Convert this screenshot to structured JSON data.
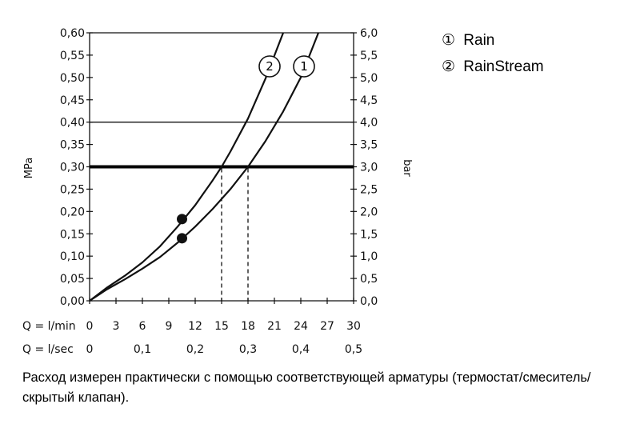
{
  "chart_data": {
    "type": "line",
    "left_axis": {
      "label": "MPa",
      "ticks": [
        "0,00",
        "0,05",
        "0,10",
        "0,15",
        "0,20",
        "0,25",
        "0,30",
        "0,35",
        "0,40",
        "0,45",
        "0,50",
        "0,55",
        "0,60"
      ],
      "range": [
        0,
        0.6
      ]
    },
    "right_axis": {
      "label": "bar",
      "ticks": [
        "0,0",
        "0,5",
        "1,0",
        "1,5",
        "2,0",
        "2,5",
        "3,0",
        "3,5",
        "4,0",
        "4,5",
        "5,0",
        "5,5",
        "6,0"
      ],
      "range": [
        0,
        6
      ]
    },
    "x_axis": {
      "range": [
        0,
        30
      ],
      "row1_label": "Q = l/min",
      "row1_ticks": [
        "0",
        "3",
        "6",
        "9",
        "12",
        "15",
        "18",
        "21",
        "24",
        "27",
        "30"
      ],
      "row2_label": "Q = l/sec",
      "row2_ticks": [
        "0",
        "0,1",
        "0,2",
        "0,3",
        "0,4",
        "0,5"
      ]
    },
    "grid": "horizontal lines at 0,40 and 0,60 MPa",
    "reference_line_y": 0.3,
    "series": [
      {
        "name": "Rain",
        "marker": "1",
        "x": [
          0,
          2,
          4,
          6,
          8,
          10,
          12,
          14,
          16,
          18,
          20,
          22,
          24,
          26
        ],
        "y": [
          0,
          0.026,
          0.048,
          0.072,
          0.098,
          0.13,
          0.166,
          0.206,
          0.25,
          0.3,
          0.358,
          0.424,
          0.5,
          0.6
        ],
        "drop_line_x": 18,
        "highlight_point": [
          10.5,
          0.14
        ]
      },
      {
        "name": "RainStream",
        "marker": "2",
        "x": [
          0,
          2,
          4,
          6,
          8,
          10,
          12,
          14,
          15,
          16,
          18,
          20,
          22
        ],
        "y": [
          0,
          0.03,
          0.056,
          0.086,
          0.122,
          0.166,
          0.214,
          0.27,
          0.3,
          0.334,
          0.408,
          0.498,
          0.6
        ],
        "drop_line_x": 15,
        "highlight_point": [
          10.5,
          0.183
        ]
      }
    ]
  },
  "legend": [
    {
      "num": "①",
      "label": "Rain"
    },
    {
      "num": "②",
      "label": "RainStream"
    }
  ],
  "footnote": "Расход измерен практически с помощью соответствующей арматуры (термостат/смеситель/скрытый клапан)."
}
